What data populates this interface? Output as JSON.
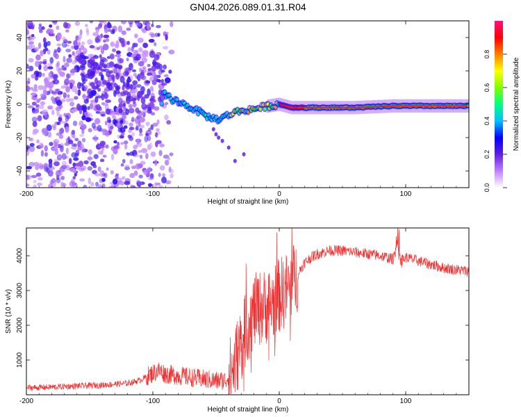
{
  "title": "GN04.2026.089.01.31.R04",
  "chart_data": [
    {
      "type": "heatmap",
      "panel": "spectrogram",
      "xlabel": "Height of straight line (km)",
      "ylabel": "Frequency (Hz)",
      "xlim": [
        -200,
        150
      ],
      "ylim": [
        -50,
        50
      ],
      "xticks": [
        -200,
        -100,
        0,
        100
      ],
      "xtick_labels": [
        "-200",
        "-100",
        "0",
        "100"
      ],
      "yticks": [
        -40,
        -20,
        0,
        20,
        40
      ],
      "ytick_labels": [
        "-40",
        "-20",
        "0",
        "20",
        "40"
      ],
      "colorbar": {
        "label": "Normalized spectral amplitude",
        "range": [
          0,
          1
        ],
        "ticks": [
          0.0,
          0.2,
          0.4,
          0.6,
          0.8
        ],
        "tick_labels": [
          "0.0",
          "0.2",
          "0.4",
          "0.6",
          "0.8"
        ],
        "colors": [
          "#ffffff",
          "#c080ff",
          "#6020e0",
          "#0000ff",
          "#00c0ff",
          "#00ff80",
          "#80ff00",
          "#ffff00",
          "#ff8000",
          "#ff0000",
          "#ff1080"
        ]
      },
      "ridge": {
        "x": [
          -92,
          -85,
          -78,
          -70,
          -62,
          -55,
          -48,
          -42,
          -36,
          -30,
          -22,
          -15,
          -8,
          0,
          10,
          30,
          60,
          90,
          120,
          150
        ],
        "y": [
          7,
          3,
          1,
          -2,
          -5,
          -8,
          -9,
          -7,
          -5,
          -4,
          -3,
          -2,
          -1,
          0,
          -2,
          -2,
          -2,
          -1,
          -1,
          -1
        ]
      },
      "scatter_region": {
        "x": [
          -200,
          -95
        ],
        "y": [
          -50,
          50
        ]
      }
    },
    {
      "type": "line",
      "panel": "snr",
      "xlabel": "Height of straight line (km)",
      "ylabel": "SNR (10 * v/v)",
      "xlim": [
        -200,
        150
      ],
      "ylim": [
        0,
        4800
      ],
      "xticks": [
        -200,
        -100,
        0,
        100
      ],
      "xtick_labels": [
        "-200",
        "-100",
        "0",
        "100"
      ],
      "yticks": [
        1000,
        2000,
        3000,
        4000
      ],
      "ytick_labels": [
        "1000",
        "2000",
        "3000",
        "4000"
      ],
      "color": "#ee3030",
      "series": [
        {
          "name": "SNR",
          "x": [
            -200,
            -180,
            -160,
            -140,
            -120,
            -110,
            -100,
            -95,
            -90,
            -80,
            -70,
            -60,
            -50,
            -42,
            -36,
            -32,
            -28,
            -24,
            -20,
            -15,
            -10,
            -5,
            0,
            5,
            10,
            15,
            20,
            25,
            30,
            40,
            50,
            60,
            70,
            80,
            85,
            90,
            93,
            96,
            100,
            110,
            120,
            130,
            140,
            150
          ],
          "y": [
            200,
            220,
            250,
            280,
            330,
            420,
            620,
            700,
            600,
            550,
            500,
            450,
            400,
            420,
            800,
            1300,
            1700,
            2100,
            2400,
            2500,
            2550,
            2650,
            2850,
            3000,
            3200,
            3500,
            3800,
            3950,
            4050,
            4150,
            4150,
            4100,
            4050,
            4000,
            3950,
            3900,
            4400,
            3850,
            3950,
            3850,
            3750,
            3650,
            3600,
            3550
          ]
        }
      ]
    }
  ]
}
